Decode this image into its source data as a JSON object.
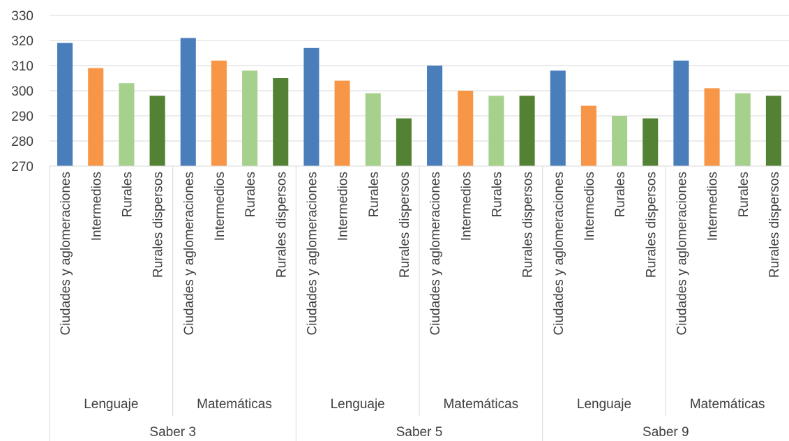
{
  "chart_data": {
    "type": "bar",
    "ylim": [
      270,
      330
    ],
    "yticks": [
      270,
      280,
      290,
      300,
      310,
      320,
      330
    ],
    "grid": true,
    "legend": "none",
    "category_colors": {
      "Ciudades y aglomeraciones": "#4a7ebb",
      "Intermedios": "#f79646",
      "Rurales": "#a6d18c",
      "Rurales dispersos": "#548235"
    },
    "tests": [
      {
        "label": "Saber 3",
        "subjects": [
          {
            "label": "Lenguaje",
            "bars": [
              {
                "category": "Ciudades y aglomeraciones",
                "value": 319
              },
              {
                "category": "Intermedios",
                "value": 309
              },
              {
                "category": "Rurales",
                "value": 303
              },
              {
                "category": "Rurales dispersos",
                "value": 298
              }
            ]
          },
          {
            "label": "Matemáticas",
            "bars": [
              {
                "category": "Ciudades y aglomeraciones",
                "value": 321
              },
              {
                "category": "Intermedios",
                "value": 312
              },
              {
                "category": "Rurales",
                "value": 308
              },
              {
                "category": "Rurales dispersos",
                "value": 305
              }
            ]
          }
        ]
      },
      {
        "label": "Saber 5",
        "subjects": [
          {
            "label": "Lenguaje",
            "bars": [
              {
                "category": "Ciudades y aglomeraciones",
                "value": 317
              },
              {
                "category": "Intermedios",
                "value": 304
              },
              {
                "category": "Rurales",
                "value": 299
              },
              {
                "category": "Rurales dispersos",
                "value": 289
              }
            ]
          },
          {
            "label": "Matemáticas",
            "bars": [
              {
                "category": "Ciudades y aglomeraciones",
                "value": 310
              },
              {
                "category": "Intermedios",
                "value": 300
              },
              {
                "category": "Rurales",
                "value": 298
              },
              {
                "category": "Rurales dispersos",
                "value": 298
              }
            ]
          }
        ]
      },
      {
        "label": "Saber 9",
        "subjects": [
          {
            "label": "Lenguaje",
            "bars": [
              {
                "category": "Ciudades y aglomeraciones",
                "value": 308
              },
              {
                "category": "Intermedios",
                "value": 294
              },
              {
                "category": "Rurales",
                "value": 290
              },
              {
                "category": "Rurales dispersos",
                "value": 289
              }
            ]
          },
          {
            "label": "Matemáticas",
            "bars": [
              {
                "category": "Ciudades y aglomeraciones",
                "value": 312
              },
              {
                "category": "Intermedios",
                "value": 301
              },
              {
                "category": "Rurales",
                "value": 299
              },
              {
                "category": "Rurales dispersos",
                "value": 298
              }
            ]
          }
        ]
      }
    ]
  }
}
